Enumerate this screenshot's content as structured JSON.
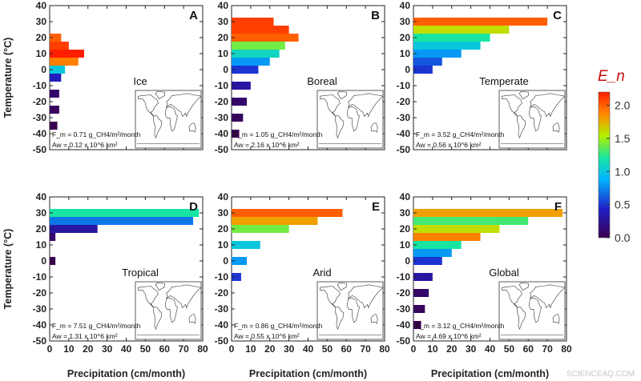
{
  "panels": [
    {
      "letter": "A",
      "region": "Ice",
      "fm_line": "F_m = 0.71 g_CH4/m²/month",
      "aw_line": "Aw = 0.12 x 10^6 km²"
    },
    {
      "letter": "B",
      "region": "Boreal",
      "fm_line": "F_m = 1.05 g_CH4/m²/month",
      "aw_line": "Aw = 2.16 x 10^6 km²"
    },
    {
      "letter": "C",
      "region": "Temperate",
      "fm_line": "F_m = 3.52 g_CH4/m²/month",
      "aw_line": "Aw = 0.56 x 10^6 km²"
    },
    {
      "letter": "D",
      "region": "Tropical",
      "fm_line": "F_m = 7.51 g_CH4/m²/month",
      "aw_line": "Aw = 1.31 x 10^6 km²"
    },
    {
      "letter": "E",
      "region": "Arid",
      "fm_line": "F_m = 0.86 g_CH4/m²/month",
      "aw_line": "Aw = 0.55 x 10^6 km²"
    },
    {
      "letter": "F",
      "region": "Global",
      "fm_line": "F_m = 3.12 g_CH4/m²/month",
      "aw_line": "Aw = 4.69 x 10^6 km²"
    }
  ],
  "colorbar": {
    "label": "E_n",
    "ticks": [
      "2.0",
      "1.5",
      "1.0",
      "0.5",
      "0.0"
    ]
  },
  "watermark": "SCIENCEAQ.COM",
  "chart_data": {
    "type": "heatmap",
    "layout": "2x3 panel grid",
    "xlabel": "Precipitation (cm/month)",
    "ylabel": "Temperature (°C)",
    "xlim": [
      0,
      80
    ],
    "ylim": [
      -50,
      40
    ],
    "xticks": [
      "0",
      "10",
      "20",
      "30",
      "40",
      "50",
      "60",
      "70",
      "80"
    ],
    "yticks": [
      "40",
      "30",
      "20",
      "10",
      "0",
      "-10",
      "-20",
      "-30",
      "-40",
      "-50"
    ],
    "value_label": "E_n",
    "value_range": [
      0,
      2.2
    ],
    "panels": [
      {
        "letter": "A",
        "region": "Ice",
        "fm": 0.71,
        "aw": 0.12,
        "fm_unit": "g_CH4/m²/month",
        "aw_unit": "10^6 km²",
        "cells": [
          {
            "t": 20,
            "p": [
              0,
              6
            ],
            "v": 2.0
          },
          {
            "t": 15,
            "p": [
              0,
              10
            ],
            "v": 2.1
          },
          {
            "t": 10,
            "p": [
              0,
              18
            ],
            "v": 2.2
          },
          {
            "t": 5,
            "p": [
              0,
              15
            ],
            "v": 1.9
          },
          {
            "t": 0,
            "p": [
              0,
              8
            ],
            "v": 1.0
          },
          {
            "t": -5,
            "p": [
              0,
              6
            ],
            "v": 0.4
          },
          {
            "t": -15,
            "p": [
              0,
              5
            ],
            "v": 0.1
          },
          {
            "t": -25,
            "p": [
              0,
              5
            ],
            "v": 0.05
          },
          {
            "t": -35,
            "p": [
              0,
              4
            ],
            "v": 0.0
          }
        ]
      },
      {
        "letter": "B",
        "region": "Boreal",
        "fm": 1.05,
        "aw": 2.16,
        "fm_unit": "g_CH4/m²/month",
        "aw_unit": "10^6 km²",
        "cells": [
          {
            "t": 30,
            "p": [
              0,
              22
            ],
            "v": 2.1
          },
          {
            "t": 25,
            "p": [
              0,
              30
            ],
            "v": 2.1
          },
          {
            "t": 20,
            "p": [
              0,
              35
            ],
            "v": 2.0
          },
          {
            "t": 15,
            "p": [
              0,
              28
            ],
            "v": 1.4
          },
          {
            "t": 10,
            "p": [
              0,
              25
            ],
            "v": 1.1
          },
          {
            "t": 5,
            "p": [
              0,
              20
            ],
            "v": 0.8
          },
          {
            "t": 0,
            "p": [
              0,
              14
            ],
            "v": 0.5
          },
          {
            "t": -10,
            "p": [
              0,
              10
            ],
            "v": 0.3
          },
          {
            "t": -20,
            "p": [
              0,
              8
            ],
            "v": 0.1
          },
          {
            "t": -30,
            "p": [
              0,
              6
            ],
            "v": 0.05
          },
          {
            "t": -40,
            "p": [
              0,
              4
            ],
            "v": 0.0
          }
        ]
      },
      {
        "letter": "C",
        "region": "Temperate",
        "fm": 3.52,
        "aw": 0.56,
        "fm_unit": "g_CH4/m²/month",
        "aw_unit": "10^6 km²",
        "cells": [
          {
            "t": 30,
            "p": [
              0,
              70
            ],
            "v": 2.0
          },
          {
            "t": 25,
            "p": [
              0,
              50
            ],
            "v": 1.6
          },
          {
            "t": 20,
            "p": [
              0,
              40
            ],
            "v": 1.2
          },
          {
            "t": 15,
            "p": [
              0,
              35
            ],
            "v": 1.0
          },
          {
            "t": 10,
            "p": [
              0,
              25
            ],
            "v": 0.8
          },
          {
            "t": 5,
            "p": [
              0,
              15
            ],
            "v": 0.6
          },
          {
            "t": 0,
            "p": [
              0,
              10
            ],
            "v": 0.5
          }
        ]
      },
      {
        "letter": "D",
        "region": "Tropical",
        "fm": 7.51,
        "aw": 1.31,
        "fm_unit": "g_CH4/m²/month",
        "aw_unit": "10^6 km²",
        "cells": [
          {
            "t": 30,
            "p": [
              0,
              78
            ],
            "v": 1.2
          },
          {
            "t": 25,
            "p": [
              0,
              75
            ],
            "v": 0.7
          },
          {
            "t": 20,
            "p": [
              0,
              25
            ],
            "v": 0.3
          },
          {
            "t": 15,
            "p": [
              0,
              3
            ],
            "v": 0.1
          },
          {
            "t": 0,
            "p": [
              0,
              3
            ],
            "v": 0.0
          }
        ]
      },
      {
        "letter": "E",
        "region": "Arid",
        "fm": 0.86,
        "aw": 0.55,
        "fm_unit": "g_CH4/m²/month",
        "aw_unit": "10^6 km²",
        "cells": [
          {
            "t": 30,
            "p": [
              0,
              58
            ],
            "v": 2.0
          },
          {
            "t": 25,
            "p": [
              0,
              45
            ],
            "v": 1.8
          },
          {
            "t": 20,
            "p": [
              0,
              30
            ],
            "v": 1.4
          },
          {
            "t": 10,
            "p": [
              0,
              15
            ],
            "v": 1.0
          },
          {
            "t": 0,
            "p": [
              0,
              8
            ],
            "v": 0.8
          },
          {
            "t": -10,
            "p": [
              0,
              5
            ],
            "v": 0.5
          }
        ]
      },
      {
        "letter": "F",
        "region": "Global",
        "fm": 3.12,
        "aw": 4.69,
        "fm_unit": "g_CH4/m²/month",
        "aw_unit": "10^6 km²",
        "cells": [
          {
            "t": 30,
            "p": [
              0,
              78
            ],
            "v": 1.8
          },
          {
            "t": 25,
            "p": [
              0,
              60
            ],
            "v": 1.3
          },
          {
            "t": 20,
            "p": [
              0,
              45
            ],
            "v": 1.6
          },
          {
            "t": 15,
            "p": [
              0,
              35
            ],
            "v": 1.9
          },
          {
            "t": 10,
            "p": [
              0,
              25
            ],
            "v": 1.2
          },
          {
            "t": 5,
            "p": [
              0,
              20
            ],
            "v": 0.8
          },
          {
            "t": 0,
            "p": [
              0,
              15
            ],
            "v": 0.5
          },
          {
            "t": -10,
            "p": [
              0,
              10
            ],
            "v": 0.3
          },
          {
            "t": -20,
            "p": [
              0,
              8
            ],
            "v": 0.1
          },
          {
            "t": -30,
            "p": [
              0,
              6
            ],
            "v": 0.05
          },
          {
            "t": -40,
            "p": [
              0,
              4
            ],
            "v": 0.0
          }
        ]
      }
    ]
  }
}
